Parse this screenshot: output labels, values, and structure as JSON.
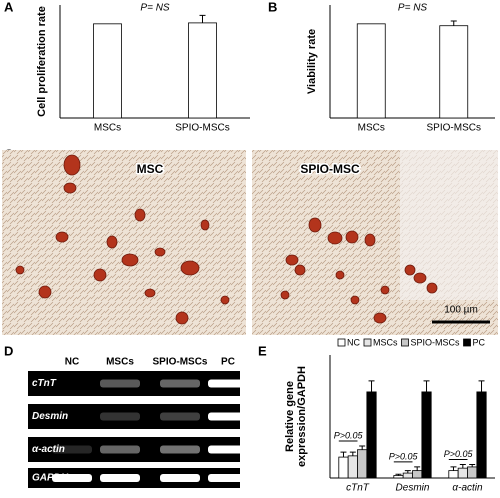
{
  "chart_data": [
    {
      "type": "bar",
      "panel": "A",
      "title": "P= NS",
      "ylabel": "Cell proliferation rate",
      "categories": [
        "MSCs",
        "SPIO-MSCs"
      ],
      "values": [
        1,
        1.01
      ],
      "errors": [
        null,
        0.08
      ],
      "color": "#ffffff",
      "ylim": [
        0,
        1.2
      ]
    },
    {
      "type": "bar",
      "panel": "B",
      "title": "P= NS",
      "ylabel": "Viability rate",
      "categories": [
        "MSCs",
        "SPIO-MSCs"
      ],
      "values": [
        1,
        0.98
      ],
      "errors": [
        null,
        0.05
      ],
      "color": "#ffffff",
      "ylim": [
        0,
        1.2
      ]
    },
    {
      "type": "bar",
      "panel": "E",
      "ylabel": [
        "Relative gene",
        "expression/GAPDH"
      ],
      "categories": [
        "cTnT",
        "Desmin",
        "α-actin"
      ],
      "series": [
        {
          "name": "NC",
          "color": "#ffffff",
          "values": [
            0.17,
            0.02,
            0.06
          ],
          "errors": [
            0.04,
            0.01,
            0.03
          ]
        },
        {
          "name": "MSCs",
          "color": "#e6e6e6",
          "values": [
            0.18,
            0.04,
            0.08
          ],
          "errors": [
            0.03,
            0.02,
            0.03
          ]
        },
        {
          "name": "SPIO-MSCs",
          "color": "#c8c8c8",
          "values": [
            0.23,
            0.06,
            0.09
          ],
          "errors": [
            0.03,
            0.03,
            0.02
          ]
        },
        {
          "name": "PC",
          "color": "#000000",
          "values": [
            0.7,
            0.7,
            0.7
          ],
          "errors": [
            0.09,
            0.09,
            0.09
          ]
        }
      ],
      "annotations": [
        "P>0.05",
        "P>0.05",
        "P>0.05"
      ],
      "ylim": [
        0,
        1
      ],
      "legend": "top"
    }
  ],
  "panel_c": {
    "label": "C",
    "images": [
      "MSC",
      "SPIO-MSC"
    ],
    "scale_bar": "100 µm"
  },
  "panel_d": {
    "label": "D",
    "lanes": [
      "NC",
      "MSCs",
      "SPIO-MSCs",
      "PC"
    ],
    "genes": [
      "cTnT",
      "Desmin",
      "α-actin",
      "GAPDH"
    ]
  }
}
